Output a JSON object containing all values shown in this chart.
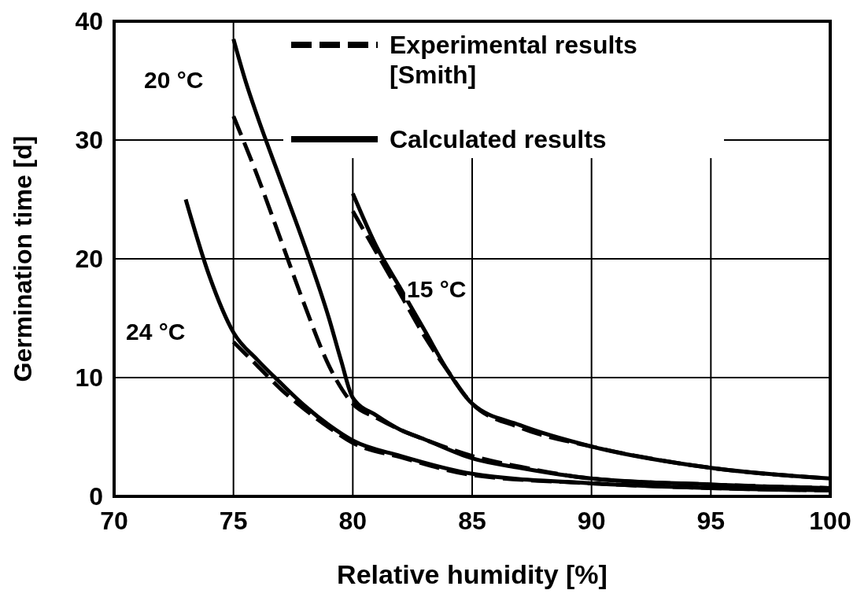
{
  "chart_data": {
    "type": "line",
    "xlabel": "Relative humidity [%]",
    "ylabel": "Germination time [d]",
    "xlim": [
      70,
      100
    ],
    "ylim": [
      0,
      40
    ],
    "xticks": [
      70,
      75,
      80,
      85,
      90,
      95,
      100
    ],
    "yticks": [
      0,
      10,
      20,
      30,
      40
    ],
    "grid": true,
    "legend": "top right",
    "marker": "none",
    "series": [
      {
        "name": "Experimental results [Smith]",
        "color": "#000000",
        "line_style": "dashed",
        "x": [
          75,
          76,
          77,
          78,
          79,
          80,
          81,
          82,
          83,
          85,
          87,
          90,
          95,
          100
        ],
        "values": [
          32,
          27,
          21.5,
          16,
          11,
          7.8,
          6.6,
          5.6,
          4.8,
          3.4,
          2.5,
          1.5,
          1,
          0.7
        ]
      },
      {
        "color": "#000000",
        "line_style": "dashed",
        "x": [
          80,
          81,
          82,
          83,
          84,
          85,
          87,
          90,
          95,
          100
        ],
        "values": [
          24,
          20.5,
          17,
          13.5,
          10.5,
          7.8,
          5.8,
          4.2,
          2.4,
          1.5
        ]
      },
      {
        "color": "#000000",
        "line_style": "dashed",
        "x": [
          75,
          76,
          77,
          78,
          79,
          80,
          82,
          85,
          90,
          95,
          100
        ],
        "values": [
          13,
          11,
          9,
          7.3,
          5.8,
          4.5,
          3.3,
          1.8,
          1.1,
          0.7,
          0.5
        ]
      },
      {
        "name": "Calculated results",
        "color": "#000000",
        "line_style": "solid",
        "x": [
          75,
          75.5,
          76,
          77,
          78,
          79,
          79.5,
          80,
          81,
          82,
          83,
          85,
          87,
          90,
          95,
          100
        ],
        "values": [
          38.5,
          35,
          32,
          26.5,
          21,
          15,
          11.5,
          8.3,
          6.8,
          5.6,
          4.8,
          3.2,
          2.4,
          1.5,
          1,
          0.7
        ]
      },
      {
        "color": "#000000",
        "line_style": "solid",
        "x": [
          80,
          81,
          82,
          83,
          84,
          85,
          87,
          90,
          95,
          100
        ],
        "values": [
          25.5,
          21,
          17.5,
          14,
          10.5,
          7.8,
          6,
          4.2,
          2.4,
          1.5
        ]
      },
      {
        "color": "#000000",
        "line_style": "solid",
        "x": [
          73,
          74,
          75,
          76,
          77,
          78,
          79,
          80,
          82,
          85,
          90,
          95,
          100
        ],
        "values": [
          25,
          18.5,
          13.8,
          11.5,
          9.5,
          7.6,
          6,
          4.7,
          3.4,
          1.9,
          1.1,
          0.7,
          0.5
        ]
      }
    ],
    "annotations": [
      "20 °C",
      "15 °C",
      "24 °C"
    ]
  }
}
